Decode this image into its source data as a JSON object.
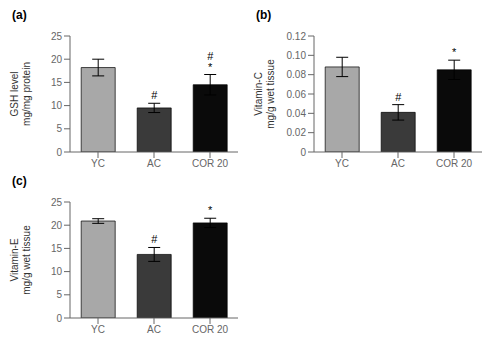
{
  "chart_data": [
    {
      "type": "bar",
      "title": "(a)",
      "y_label": "GSH level\nmg/mg protein",
      "categories": [
        "YC",
        "AC",
        "COR 20"
      ],
      "values": [
        18.2,
        9.5,
        14.5
      ],
      "errors": [
        1.8,
        1.0,
        2.2
      ],
      "colors": [
        "#a8a8a8",
        "#3a3a3a",
        "#0a0a0a"
      ],
      "ylim": [
        0,
        25
      ],
      "yticks": [
        0,
        5,
        10,
        15,
        20,
        25
      ],
      "annotations": [
        {
          "category": "AC",
          "text": "#"
        },
        {
          "category": "COR 20",
          "text": "*"
        },
        {
          "category": "COR 20",
          "text": "#"
        }
      ],
      "grid": false
    },
    {
      "type": "bar",
      "title": "(b)",
      "y_label": "Vitamin-C\nmg/g wet tissue",
      "categories": [
        "YC",
        "AC",
        "COR 20"
      ],
      "values": [
        0.088,
        0.041,
        0.085
      ],
      "errors": [
        0.01,
        0.008,
        0.01
      ],
      "colors": [
        "#a8a8a8",
        "#3a3a3a",
        "#0a0a0a"
      ],
      "ylim": [
        0,
        0.12
      ],
      "yticks": [
        0,
        0.02,
        0.04,
        0.06,
        0.08,
        {
          "value": 0.1,
          "label": "0.10"
        },
        0.12
      ],
      "annotations": [
        {
          "category": "AC",
          "text": "#"
        },
        {
          "category": "COR 20",
          "text": "*"
        }
      ],
      "grid": false
    },
    {
      "type": "bar",
      "title": "(c)",
      "y_label": "Vitamin-E\nmg/g wet tissue",
      "categories": [
        "YC",
        "AC",
        "COR 20"
      ],
      "values": [
        20.9,
        13.7,
        20.5
      ],
      "errors": [
        0.5,
        1.5,
        1.0
      ],
      "colors": [
        "#a8a8a8",
        "#3a3a3a",
        "#0a0a0a"
      ],
      "ylim": [
        0,
        25
      ],
      "yticks": [
        0,
        5,
        10,
        15,
        20,
        25
      ],
      "annotations": [
        {
          "category": "AC",
          "text": "#"
        },
        {
          "category": "COR 20",
          "text": "*"
        }
      ],
      "grid": false
    }
  ]
}
